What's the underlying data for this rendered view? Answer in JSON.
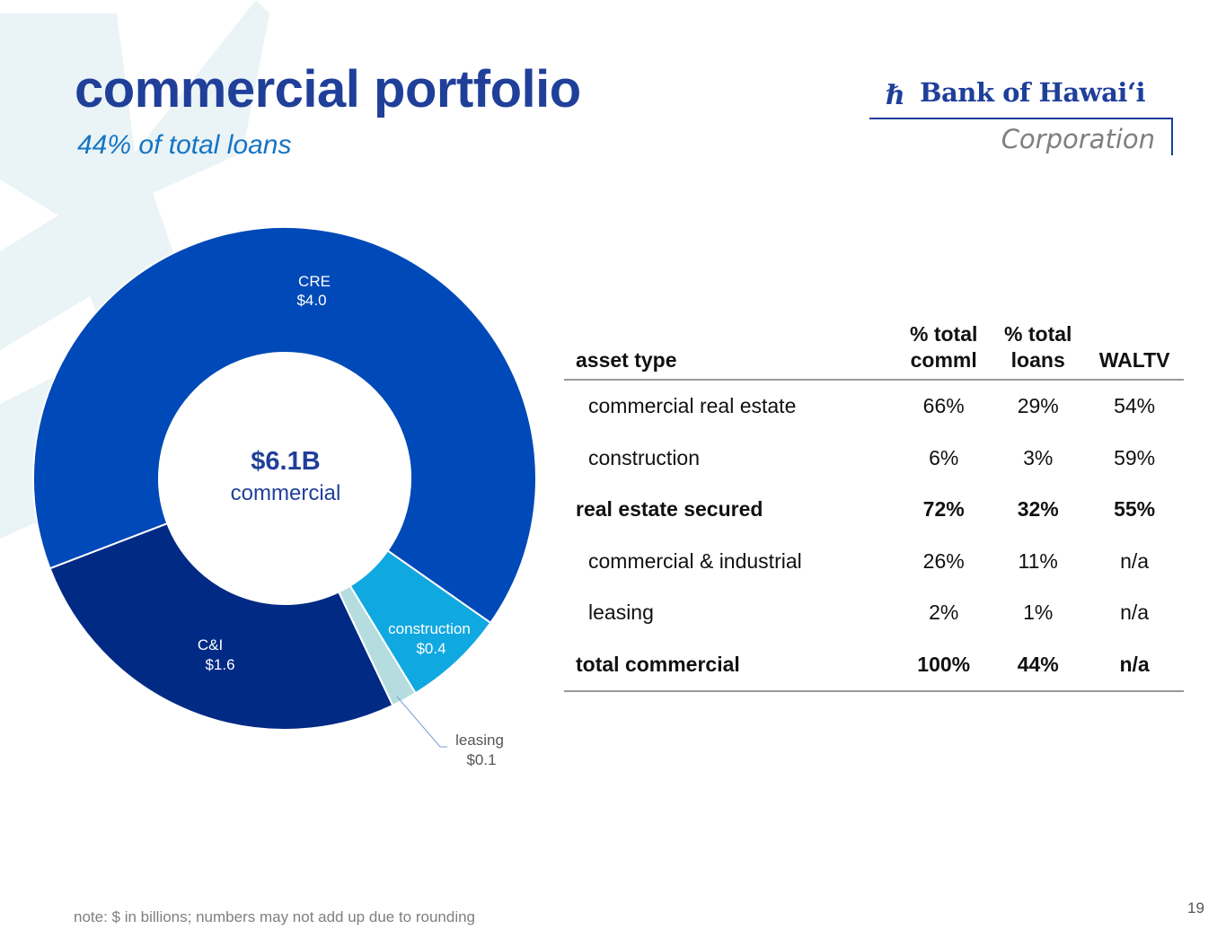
{
  "header": {
    "title": "commercial portfolio",
    "subtitle": "44% of total loans"
  },
  "logo": {
    "name": "Bank of Hawai‘i",
    "division": "Corporation"
  },
  "chart_data": {
    "type": "pie",
    "style": "donut",
    "center_label": {
      "value": "$6.1B",
      "caption": "commercial"
    },
    "unit": "$ billions",
    "slices": [
      {
        "label": "CRE",
        "value_label": "$4.0",
        "value": 4.0,
        "color": "#0049b8"
      },
      {
        "label": "construction",
        "value_label": "$0.4",
        "value": 0.4,
        "color": "#10a8e0"
      },
      {
        "label": "leasing",
        "value_label": "$0.1",
        "value": 0.1,
        "color": "#b5dde0"
      },
      {
        "label": "C&I",
        "value_label": "$1.6",
        "value": 1.6,
        "color": "#012a85"
      }
    ]
  },
  "table": {
    "headers": [
      [
        "asset type"
      ],
      [
        "% total",
        "comml"
      ],
      [
        "% total",
        "loans"
      ],
      [
        "WALTV"
      ]
    ],
    "rows": [
      {
        "bold": false,
        "cells": [
          "commercial real estate",
          "66%",
          "29%",
          "54%"
        ]
      },
      {
        "bold": false,
        "cells": [
          "construction",
          "6%",
          "3%",
          "59%"
        ]
      },
      {
        "bold": true,
        "cells": [
          "real estate secured",
          "72%",
          "32%",
          "55%"
        ]
      },
      {
        "bold": false,
        "cells": [
          "commercial & industrial",
          "26%",
          "11%",
          "n/a"
        ]
      },
      {
        "bold": false,
        "cells": [
          "leasing",
          "2%",
          "1%",
          "n/a"
        ]
      },
      {
        "bold": true,
        "cells": [
          "total commercial",
          "100%",
          "44%",
          "n/a"
        ]
      }
    ]
  },
  "footer": {
    "note": "note: $ in billions; numbers may not add up due to rounding",
    "page": "19"
  }
}
